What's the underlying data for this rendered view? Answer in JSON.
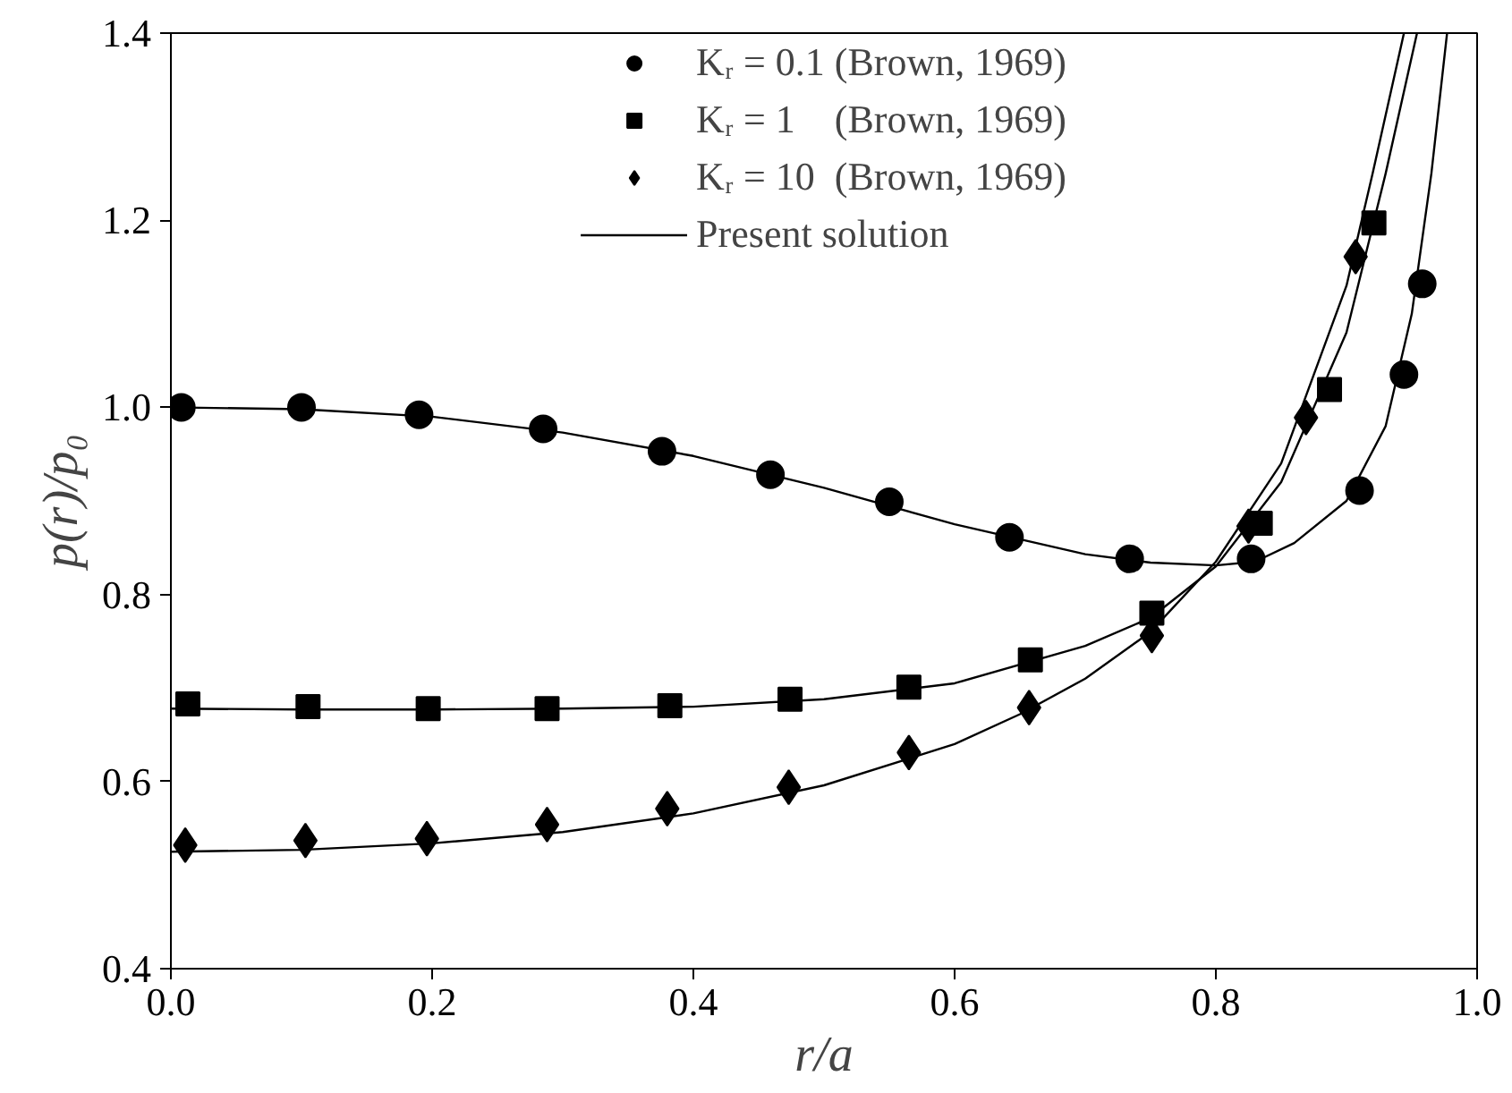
{
  "chart_data": {
    "type": "scatter",
    "xlabel": "r/a",
    "ylabel": "p(r)/p₀",
    "xlim": [
      0,
      1
    ],
    "ylim": [
      0.4,
      1.4
    ],
    "xticks": [
      {
        "value": 0,
        "label": "0.0"
      },
      0.2,
      0.4,
      0.6,
      0.8,
      {
        "value": 1,
        "label": "1.0"
      }
    ],
    "yticks": [
      0.4,
      0.6,
      0.8,
      {
        "value": 1,
        "label": "1.0"
      },
      1.2,
      1.4
    ],
    "grid": false,
    "legend": "top",
    "series": [
      {
        "name": "Kᵣ = 0.1 (Brown, 1969)",
        "marker": "circle",
        "color": "#000000",
        "x": [
          0.008,
          0.1,
          0.19,
          0.285,
          0.376,
          0.459,
          0.55,
          0.642,
          0.734,
          0.827,
          0.91,
          0.944,
          0.958
        ],
        "values": [
          1.0,
          1.0,
          0.992,
          0.977,
          0.953,
          0.928,
          0.899,
          0.861,
          0.838,
          0.838,
          0.911,
          1.035,
          1.132
        ]
      },
      {
        "name": "Kᵣ = 1    (Brown, 1969)",
        "marker": "square",
        "color": "#000000",
        "x": [
          0.013,
          0.105,
          0.197,
          0.288,
          0.382,
          0.474,
          0.565,
          0.658,
          0.751,
          0.834,
          0.887,
          0.921
        ],
        "values": [
          0.683,
          0.68,
          0.678,
          0.678,
          0.681,
          0.688,
          0.701,
          0.73,
          0.78,
          0.876,
          1.019,
          1.197
        ]
      },
      {
        "name": "Kᵣ = 10  (Brown, 1969)",
        "marker": "diamond",
        "color": "#000000",
        "x": [
          0.011,
          0.103,
          0.196,
          0.288,
          0.38,
          0.473,
          0.565,
          0.657,
          0.751,
          0.825,
          0.869,
          0.907
        ],
        "values": [
          0.532,
          0.537,
          0.539,
          0.554,
          0.571,
          0.594,
          0.631,
          0.679,
          0.756,
          0.873,
          0.989,
          1.161
        ]
      },
      {
        "name": "Present solution",
        "type": "line",
        "line_style": "solid",
        "color": "#000000",
        "x": [
          0,
          0.1,
          0.2,
          0.3,
          0.4,
          0.5,
          0.6,
          0.7,
          0.75,
          0.8,
          0.83,
          0.86,
          0.9,
          0.93,
          0.95,
          0.965,
          0.977
        ],
        "values": [
          1.0,
          0.998,
          0.99,
          0.973,
          0.948,
          0.914,
          0.875,
          0.843,
          0.834,
          0.831,
          0.835,
          0.855,
          0.9,
          0.98,
          1.1,
          1.25,
          1.4
        ]
      },
      {
        "type": "line",
        "line_style": "solid",
        "color": "#000000",
        "x": [
          0,
          0.1,
          0.2,
          0.3,
          0.4,
          0.5,
          0.6,
          0.7,
          0.75,
          0.8,
          0.85,
          0.9,
          0.93,
          0.954
        ],
        "values": [
          0.678,
          0.677,
          0.677,
          0.678,
          0.68,
          0.688,
          0.705,
          0.745,
          0.775,
          0.83,
          0.92,
          1.08,
          1.25,
          1.4
        ]
      },
      {
        "type": "line",
        "line_style": "solid",
        "color": "#000000",
        "x": [
          0,
          0.1,
          0.2,
          0.3,
          0.4,
          0.5,
          0.6,
          0.65,
          0.7,
          0.75,
          0.8,
          0.85,
          0.9,
          0.92,
          0.944
        ],
        "values": [
          0.525,
          0.527,
          0.534,
          0.546,
          0.566,
          0.596,
          0.64,
          0.672,
          0.71,
          0.76,
          0.835,
          0.94,
          1.13,
          1.25,
          1.4
        ]
      }
    ]
  }
}
